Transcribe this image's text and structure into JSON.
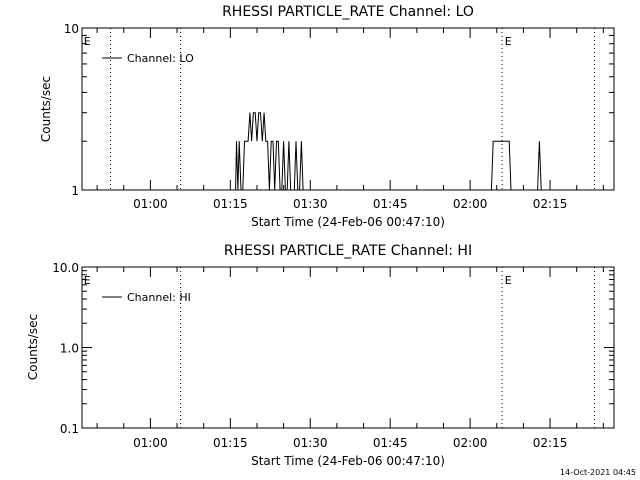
{
  "chart_data": [
    {
      "type": "line",
      "title": "RHESSI PARTICLE_RATE Channel: LO",
      "xlabel": "Start Time (24-Feb-06 00:47:10)",
      "ylabel": "Counts/sec",
      "y_scale": "log",
      "ylim": [
        1,
        10
      ],
      "y_ticks": [
        1,
        10
      ],
      "y_tick_labels": [
        "1",
        "10"
      ],
      "xlim": [
        "00:47:10",
        "02:27:00"
      ],
      "x_ticks": [
        "01:00",
        "01:15",
        "01:30",
        "01:45",
        "02:00",
        "02:15"
      ],
      "event_lines": [
        "00:52:30",
        "01:05:40",
        "02:06:00",
        "02:23:20"
      ],
      "event_markers": [
        {
          "label": "E",
          "at": "00:47:30"
        },
        {
          "label": "E",
          "at": "02:06:30"
        }
      ],
      "legend_position": "top-left",
      "series": [
        {
          "name": "Channel: LO",
          "x": [
            "01:16:00",
            "01:16:10",
            "01:16:25",
            "01:16:40",
            "01:17:00",
            "01:17:20",
            "01:17:40",
            "01:18:00",
            "01:18:20",
            "01:18:40",
            "01:19:00",
            "01:19:20",
            "01:19:40",
            "01:20:00",
            "01:20:20",
            "01:20:40",
            "01:21:00",
            "01:21:20",
            "01:21:40",
            "01:22:00",
            "01:22:20",
            "01:22:40",
            "01:23:00",
            "01:23:20",
            "01:23:40",
            "01:24:00",
            "01:24:20",
            "01:24:40",
            "01:25:00",
            "01:25:20",
            "01:25:40",
            "01:26:00",
            "01:26:20",
            "01:26:40",
            "01:27:00",
            "01:27:20",
            "01:27:40",
            "01:28:00",
            "01:28:20",
            "01:28:40",
            "01:29:00",
            "01:29:20",
            "01:29:40",
            "02:04:00",
            "02:04:20",
            "02:04:40",
            "02:05:00",
            "02:07:00",
            "02:07:20",
            "02:07:40",
            "02:08:00",
            "02:12:40",
            "02:13:00",
            "02:13:20",
            "02:13:40"
          ],
          "values": [
            1,
            2,
            1,
            2,
            1,
            1,
            2,
            2,
            2,
            3,
            2,
            3,
            3,
            2,
            3,
            3,
            2,
            3,
            2,
            2,
            1,
            2,
            2,
            1,
            2,
            2,
            1,
            1,
            2,
            1,
            1,
            2,
            1,
            1,
            1,
            2,
            1,
            1,
            2,
            1,
            1,
            null,
            null,
            1,
            2,
            2,
            2,
            2,
            2,
            1,
            1,
            1,
            2,
            1,
            1
          ]
        }
      ]
    },
    {
      "type": "line",
      "title": "RHESSI PARTICLE_RATE Channel: HI",
      "xlabel": "Start Time (24-Feb-06 00:47:10)",
      "ylabel": "Counts/sec",
      "y_scale": "log",
      "ylim": [
        0.1,
        10
      ],
      "y_ticks": [
        0.1,
        1,
        10
      ],
      "y_tick_labels": [
        "0.1",
        "1.0",
        "10.0"
      ],
      "xlim": [
        "00:47:10",
        "02:27:00"
      ],
      "x_ticks": [
        "01:00",
        "01:15",
        "01:30",
        "01:45",
        "02:00",
        "02:15"
      ],
      "event_lines": [
        "01:05:40",
        "02:06:00",
        "02:23:20"
      ],
      "event_markers": [
        {
          "label": "E",
          "at": "00:47:30"
        },
        {
          "label": "E",
          "at": "02:06:30"
        }
      ],
      "legend_position": "top-left",
      "series": [
        {
          "name": "Channel: HI",
          "x": [],
          "values": []
        }
      ]
    }
  ],
  "footer": {
    "timestamp": "14-Oct-2021 04:45"
  }
}
